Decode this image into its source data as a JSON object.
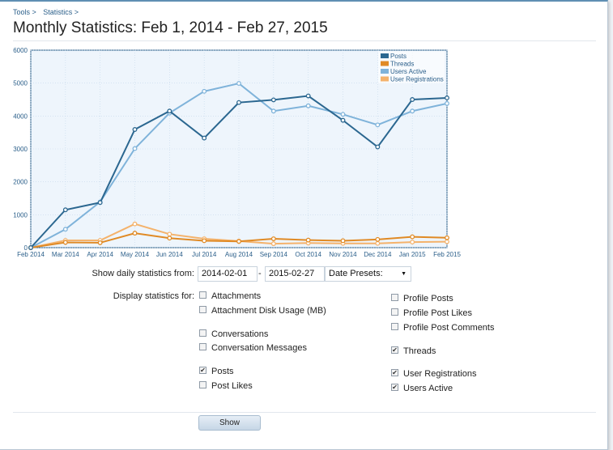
{
  "breadcrumb": {
    "items": [
      "Tools >",
      "Statistics >"
    ]
  },
  "page": {
    "title": "Monthly Statistics: Feb 1, 2014 - Feb 27, 2015"
  },
  "chart_data": {
    "type": "line",
    "categories": [
      "Feb 2014",
      "Mar 2014",
      "Apr 2014",
      "May 2014",
      "Jun 2014",
      "Jul 2014",
      "Aug 2014",
      "Sep 2014",
      "Oct 2014",
      "Nov 2014",
      "Dec 2014",
      "Jan 2015",
      "Feb 2015"
    ],
    "ylim": [
      0,
      6000
    ],
    "yticks": [
      0,
      1000,
      2000,
      3000,
      4000,
      5000,
      6000
    ],
    "grid": true,
    "legend_position": "top-right",
    "series": [
      {
        "name": "Posts",
        "color": "#2b6790",
        "values": [
          0,
          1150,
          1370,
          3590,
          4150,
          3330,
          4410,
          4490,
          4610,
          3870,
          3060,
          4500,
          4550
        ]
      },
      {
        "name": "Threads",
        "color": "#e08a25",
        "values": [
          0,
          160,
          150,
          440,
          290,
          210,
          190,
          270,
          230,
          210,
          250,
          330,
          300
        ]
      },
      {
        "name": "Users Active",
        "color": "#7fb3da",
        "values": [
          0,
          560,
          1390,
          3010,
          4090,
          4750,
          4990,
          4150,
          4310,
          4050,
          3730,
          4150,
          4380
        ]
      },
      {
        "name": "User Registrations",
        "color": "#f4b26b",
        "values": [
          0,
          220,
          220,
          720,
          410,
          270,
          200,
          120,
          140,
          130,
          130,
          170,
          180
        ]
      }
    ]
  },
  "filters": {
    "daily_label": "Show daily statistics from:",
    "start_date": "2014-02-01",
    "separator": "-",
    "end_date": "2015-02-27",
    "presets_label": "Date Presets:",
    "display_label": "Display statistics for:"
  },
  "options": {
    "attachments": {
      "label": "Attachments",
      "checked": false
    },
    "attachment_disk": {
      "label": "Attachment Disk Usage (MB)",
      "checked": false
    },
    "conversations": {
      "label": "Conversations",
      "checked": false
    },
    "conversation_messages": {
      "label": "Conversation Messages",
      "checked": false
    },
    "posts": {
      "label": "Posts",
      "checked": true
    },
    "post_likes": {
      "label": "Post Likes",
      "checked": false
    },
    "profile_posts": {
      "label": "Profile Posts",
      "checked": false
    },
    "profile_post_likes": {
      "label": "Profile Post Likes",
      "checked": false
    },
    "profile_post_comments": {
      "label": "Profile Post Comments",
      "checked": false
    },
    "threads": {
      "label": "Threads",
      "checked": true
    },
    "user_registrations": {
      "label": "User Registrations",
      "checked": true
    },
    "users_active": {
      "label": "Users Active",
      "checked": true
    }
  },
  "actions": {
    "show_label": "Show"
  },
  "check_glyph": "✔"
}
